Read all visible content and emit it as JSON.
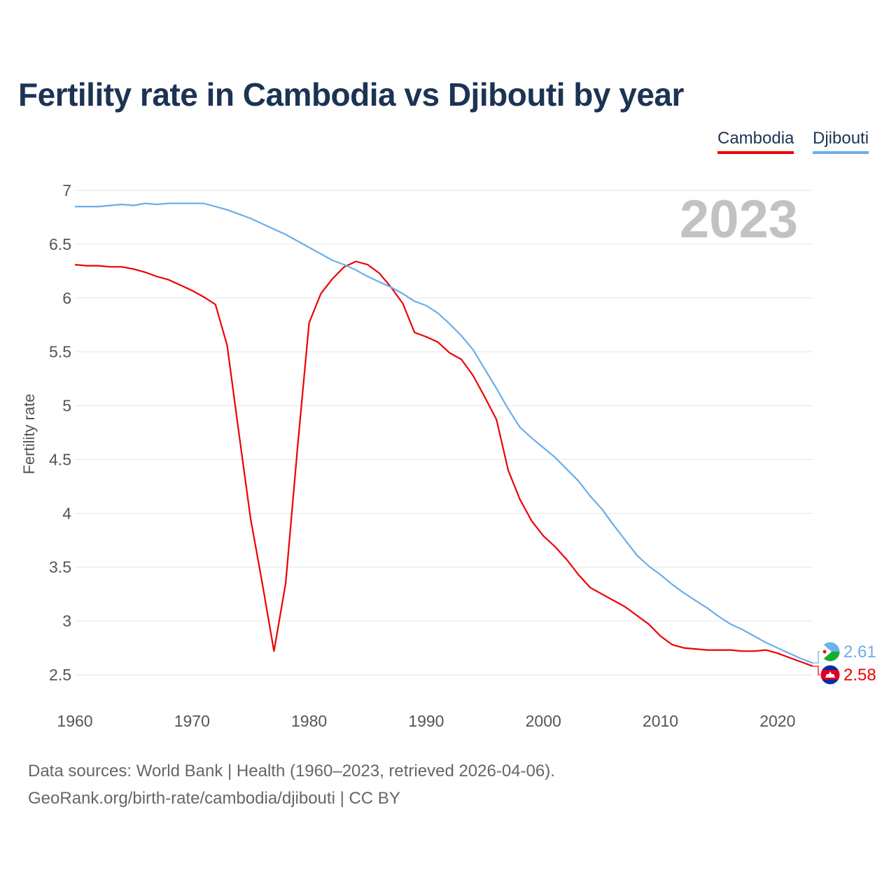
{
  "chart_data": {
    "type": "line",
    "title": "Fertility rate in Cambodia vs Djibouti by year",
    "ylabel": "Fertility rate",
    "xlabel": "",
    "xlim": [
      1960,
      2023
    ],
    "ylim": [
      2.5,
      7
    ],
    "x_ticks": [
      1960,
      1970,
      1980,
      1990,
      2000,
      2010,
      2020
    ],
    "y_ticks": [
      2.5,
      3,
      3.5,
      4,
      4.5,
      5,
      5.5,
      6,
      6.5,
      7
    ],
    "y_tick_labels": [
      "2.5",
      "3",
      "3.5",
      "4",
      "4.5",
      "5",
      "5.5",
      "6",
      "6.5",
      "7"
    ],
    "grid": true,
    "legend_position": "top-right",
    "year_label": "2023",
    "x": [
      1960,
      1961,
      1962,
      1963,
      1964,
      1965,
      1966,
      1967,
      1968,
      1969,
      1970,
      1971,
      1972,
      1973,
      1974,
      1975,
      1976,
      1977,
      1978,
      1979,
      1980,
      1981,
      1982,
      1983,
      1984,
      1985,
      1986,
      1987,
      1988,
      1989,
      1990,
      1991,
      1992,
      1993,
      1994,
      1995,
      1996,
      1997,
      1998,
      1999,
      2000,
      2001,
      2002,
      2003,
      2004,
      2005,
      2006,
      2007,
      2008,
      2009,
      2010,
      2011,
      2012,
      2013,
      2014,
      2015,
      2016,
      2017,
      2018,
      2019,
      2020,
      2021,
      2022,
      2023
    ],
    "series": [
      {
        "name": "Cambodia",
        "color": "#ee0000",
        "flag": "cambodia-flag-icon",
        "end_label": "2.58",
        "values": [
          6.31,
          6.3,
          6.3,
          6.29,
          6.29,
          6.27,
          6.24,
          6.2,
          6.17,
          6.12,
          6.07,
          6.01,
          5.94,
          5.56,
          4.75,
          3.95,
          3.35,
          2.72,
          3.35,
          4.6,
          5.77,
          6.04,
          6.18,
          6.29,
          6.34,
          6.31,
          6.23,
          6.1,
          5.95,
          5.68,
          5.64,
          5.59,
          5.49,
          5.43,
          5.28,
          5.08,
          4.87,
          4.4,
          4.13,
          3.93,
          3.79,
          3.69,
          3.57,
          3.43,
          3.31,
          3.25,
          3.19,
          3.13,
          3.05,
          2.97,
          2.86,
          2.78,
          2.75,
          2.74,
          2.73,
          2.73,
          2.73,
          2.72,
          2.72,
          2.73,
          2.7,
          2.66,
          2.62,
          2.58
        ]
      },
      {
        "name": "Djibouti",
        "color": "#6aaeea",
        "flag": "djibouti-flag-icon",
        "end_label": "2.61",
        "values": [
          6.85,
          6.85,
          6.85,
          6.86,
          6.87,
          6.86,
          6.88,
          6.87,
          6.88,
          6.88,
          6.88,
          6.88,
          6.85,
          6.82,
          6.78,
          6.74,
          6.69,
          6.64,
          6.59,
          6.53,
          6.47,
          6.41,
          6.35,
          6.31,
          6.26,
          6.2,
          6.15,
          6.1,
          6.04,
          5.97,
          5.93,
          5.86,
          5.76,
          5.65,
          5.52,
          5.34,
          5.16,
          4.97,
          4.8,
          4.7,
          4.61,
          4.52,
          4.41,
          4.3,
          4.16,
          4.04,
          3.89,
          3.75,
          3.61,
          3.51,
          3.43,
          3.34,
          3.26,
          3.19,
          3.12,
          3.04,
          2.97,
          2.92,
          2.86,
          2.8,
          2.75,
          2.7,
          2.65,
          2.61
        ]
      }
    ]
  },
  "footer": {
    "sources": "Data sources: World Bank | Health (1960–2023, retrieved 2026-04-06).",
    "credit": "GeoRank.org/birth-rate/cambodia/djibouti | CC BY"
  }
}
